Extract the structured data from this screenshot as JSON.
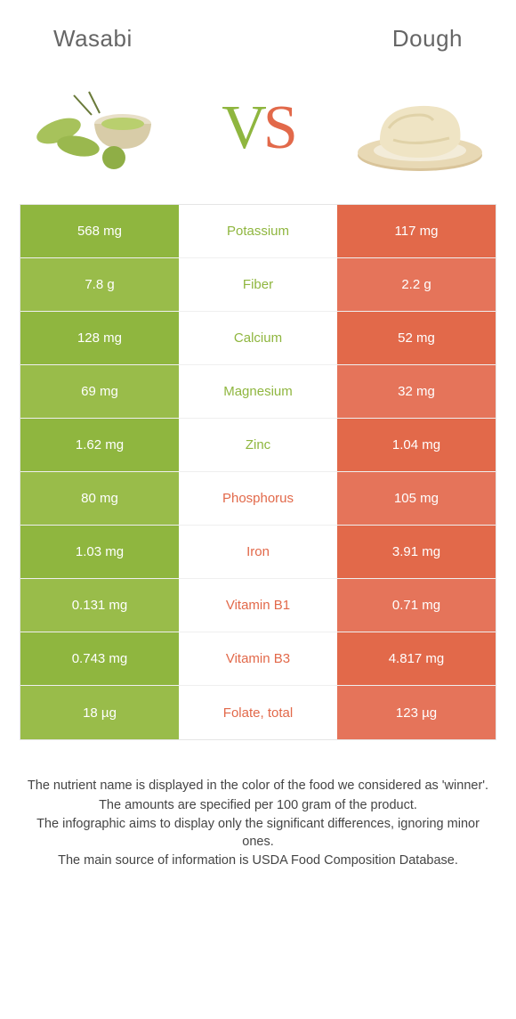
{
  "header": {
    "left_title": "Wasabi",
    "right_title": "Dough",
    "vs_v": "V",
    "vs_s": "S"
  },
  "colors": {
    "left": "#8fb63f",
    "right": "#e2694a",
    "left_alt": "#99bc4a",
    "right_alt": "#e5745a"
  },
  "table": {
    "rows": [
      {
        "left": "568 mg",
        "label": "Potassium",
        "right": "117 mg",
        "winner": "left"
      },
      {
        "left": "7.8 g",
        "label": "Fiber",
        "right": "2.2 g",
        "winner": "left"
      },
      {
        "left": "128 mg",
        "label": "Calcium",
        "right": "52 mg",
        "winner": "left"
      },
      {
        "left": "69 mg",
        "label": "Magnesium",
        "right": "32 mg",
        "winner": "left"
      },
      {
        "left": "1.62 mg",
        "label": "Zinc",
        "right": "1.04 mg",
        "winner": "left"
      },
      {
        "left": "80 mg",
        "label": "Phosphorus",
        "right": "105 mg",
        "winner": "right"
      },
      {
        "left": "1.03 mg",
        "label": "Iron",
        "right": "3.91 mg",
        "winner": "right"
      },
      {
        "left": "0.131 mg",
        "label": "Vitamin B1",
        "right": "0.71 mg",
        "winner": "right"
      },
      {
        "left": "0.743 mg",
        "label": "Vitamin B3",
        "right": "4.817 mg",
        "winner": "right"
      },
      {
        "left": "18 µg",
        "label": "Folate, total",
        "right": "123 µg",
        "winner": "right"
      }
    ]
  },
  "footnotes": [
    "The nutrient name is displayed in the color of the food we considered as 'winner'.",
    "The amounts are specified per 100 gram of the product.",
    "The infographic aims to display only the significant differences, ignoring minor ones.",
    "The main source of information is USDA Food Composition Database."
  ]
}
